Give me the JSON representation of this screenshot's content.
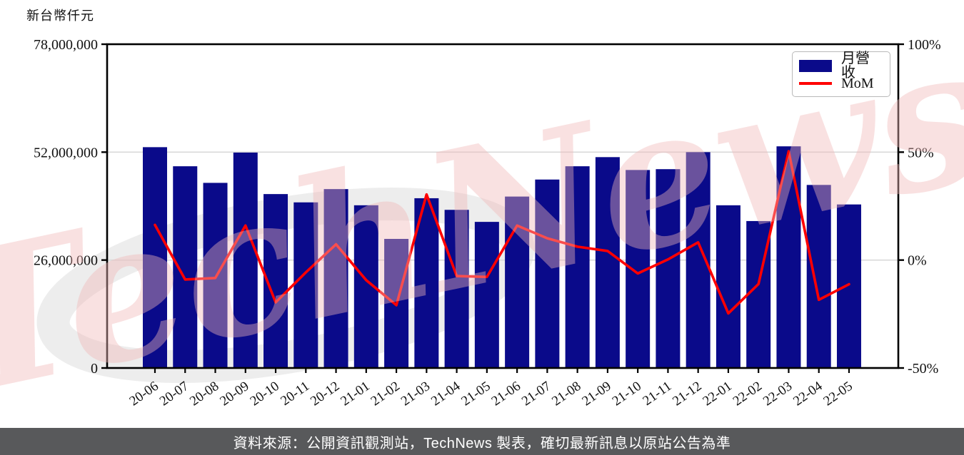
{
  "unit_label": "新台幣仟元",
  "watermark_text": "TechNews",
  "legend": {
    "bar_label": "月營收",
    "line_label": "MoM"
  },
  "footer": {
    "text": "資料來源：公開資訊觀測站，TechNews 製表，確切最新訊息以原站公告為準"
  },
  "colors": {
    "bar": "#0a0a8a",
    "line": "#ff0000",
    "grid": "#d9d9d9",
    "axis": "#000000",
    "footer_bg": "#58595b",
    "footer_text": "#ffffff",
    "watermark_pink": "#f0b8b8",
    "watermark_gray": "#d8d8d8"
  },
  "chart_data": {
    "type": "bar",
    "title": "",
    "categories": [
      "20-06",
      "20-07",
      "20-08",
      "20-09",
      "20-10",
      "20-11",
      "20-12",
      "21-01",
      "21-02",
      "21-03",
      "21-04",
      "21-05",
      "21-06",
      "21-07",
      "21-08",
      "21-09",
      "21-10",
      "21-11",
      "21-12",
      "22-01",
      "22-02",
      "22-03",
      "22-04",
      "22-05"
    ],
    "series": [
      {
        "name": "月營收",
        "type": "bar",
        "axis": "left",
        "unit": "新台幣仟元",
        "values": [
          53200000,
          48600000,
          44600000,
          51900000,
          41900000,
          39900000,
          43100000,
          39200000,
          31100000,
          40900000,
          38100000,
          35200000,
          41300000,
          45400000,
          48600000,
          50800000,
          47700000,
          47900000,
          52000000,
          39200000,
          35400000,
          53400000,
          44100000,
          39400000
        ]
      },
      {
        "name": "MoM",
        "type": "line",
        "axis": "right",
        "unit": "%",
        "values": [
          16.3,
          -9.0,
          -8.3,
          16.0,
          -19.6,
          -5.7,
          7.3,
          -9.3,
          -20.9,
          30.4,
          -7.4,
          -7.8,
          16.0,
          10.1,
          6.2,
          4.2,
          -6.2,
          0.3,
          8.2,
          -24.7,
          -11.1,
          50.4,
          -18.4,
          -11.2
        ]
      }
    ],
    "left_axis": {
      "label": "新台幣仟元",
      "range": [
        0,
        78000000
      ],
      "tick_values": [
        0,
        26000000,
        52000000,
        78000000
      ],
      "tick_labels": [
        "0",
        "26,000,000",
        "52,000,000",
        "78,000,000"
      ]
    },
    "right_axis": {
      "label": "",
      "range": [
        -50,
        100
      ],
      "tick_values": [
        -50,
        0,
        50,
        100
      ],
      "tick_labels": [
        "-50%",
        "0%",
        "50%",
        "100%"
      ]
    },
    "gridlines_at_left_values": [
      26000000,
      52000000
    ],
    "grid": "horizontal",
    "legend_position": "top-right"
  }
}
